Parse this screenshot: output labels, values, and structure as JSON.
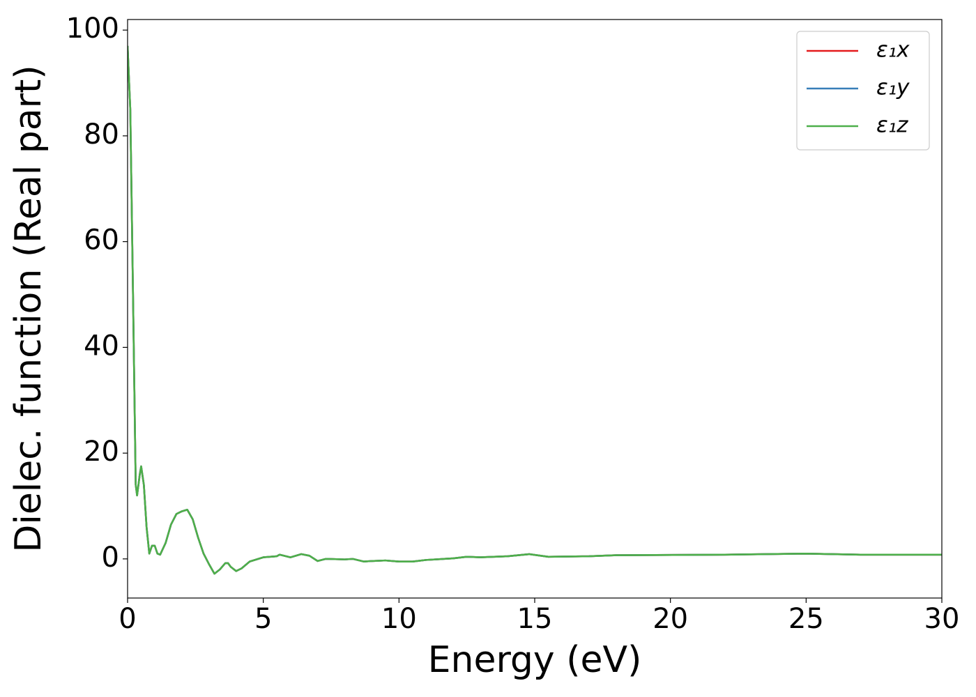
{
  "chart_data": {
    "type": "line",
    "xlabel": "Energy (eV)",
    "ylabel": "Dielec. function (Real part)",
    "x": [
      0,
      0.1,
      0.2,
      0.3,
      0.35,
      0.45,
      0.5,
      0.6,
      0.7,
      0.8,
      0.9,
      1.0,
      1.1,
      1.2,
      1.4,
      1.6,
      1.8,
      2.0,
      2.2,
      2.4,
      2.6,
      2.8,
      3.0,
      3.2,
      3.4,
      3.6,
      3.7,
      3.8,
      4.0,
      4.2,
      4.5,
      5.0,
      5.5,
      5.6,
      6.0,
      6.4,
      6.7,
      7.0,
      7.3,
      8.0,
      8.3,
      8.7,
      9.0,
      9.5,
      10.0,
      10.5,
      11.0,
      12.0,
      12.5,
      13.0,
      14.0,
      14.8,
      15.5,
      17.0,
      18.0,
      22.0,
      25.0,
      27.0,
      30.0
    ],
    "series": [
      {
        "name": "ε₁x",
        "color": "#e41a1c",
        "values": [
          97,
          85,
          50,
          14,
          12,
          16,
          17.5,
          14,
          6,
          1,
          2.5,
          2.5,
          1,
          0.8,
          3,
          6.5,
          8.5,
          9,
          9.3,
          7.5,
          4,
          1,
          -1,
          -2.8,
          -2,
          -0.8,
          -0.8,
          -1.5,
          -2.3,
          -1.8,
          -0.5,
          0.3,
          0.5,
          0.8,
          0.3,
          0.9,
          0.6,
          -0.4,
          0,
          -0.1,
          0,
          -0.5,
          -0.4,
          -0.3,
          -0.5,
          -0.5,
          -0.2,
          0.1,
          0.4,
          0.3,
          0.5,
          0.9,
          0.4,
          0.5,
          0.7,
          0.8,
          1.0,
          0.8,
          0.8
        ]
      },
      {
        "name": "ε₁y",
        "color": "#377eb8",
        "values": [
          97,
          85,
          50,
          14,
          12,
          16,
          17.5,
          14,
          6,
          1,
          2.5,
          2.5,
          1,
          0.8,
          3,
          6.5,
          8.5,
          9,
          9.3,
          7.5,
          4,
          1,
          -1,
          -2.8,
          -2,
          -0.8,
          -0.8,
          -1.5,
          -2.3,
          -1.8,
          -0.5,
          0.3,
          0.5,
          0.8,
          0.3,
          0.9,
          0.6,
          -0.4,
          0,
          -0.1,
          0,
          -0.5,
          -0.4,
          -0.3,
          -0.5,
          -0.5,
          -0.2,
          0.1,
          0.4,
          0.3,
          0.5,
          0.9,
          0.4,
          0.5,
          0.7,
          0.8,
          1.0,
          0.8,
          0.8
        ]
      },
      {
        "name": "ε₁z",
        "color": "#4daf4a",
        "values": [
          97,
          85,
          50,
          14,
          12,
          16,
          17.5,
          14,
          6,
          1,
          2.5,
          2.5,
          1,
          0.8,
          3,
          6.5,
          8.5,
          9,
          9.3,
          7.5,
          4,
          1,
          -1,
          -2.8,
          -2,
          -0.8,
          -0.8,
          -1.5,
          -2.3,
          -1.8,
          -0.5,
          0.3,
          0.5,
          0.8,
          0.3,
          0.9,
          0.6,
          -0.4,
          0,
          -0.1,
          0,
          -0.5,
          -0.4,
          -0.3,
          -0.5,
          -0.5,
          -0.2,
          0.1,
          0.4,
          0.3,
          0.5,
          0.9,
          0.4,
          0.5,
          0.7,
          0.8,
          1.0,
          0.8,
          0.8
        ]
      }
    ],
    "xlim": [
      0,
      30
    ],
    "xticks": [
      0,
      5,
      10,
      15,
      20,
      25,
      30
    ],
    "ylim": [
      -7.4,
      102
    ],
    "yticks": [
      0,
      20,
      40,
      60,
      80,
      100
    ],
    "legend": "upper right",
    "grid": false
  }
}
